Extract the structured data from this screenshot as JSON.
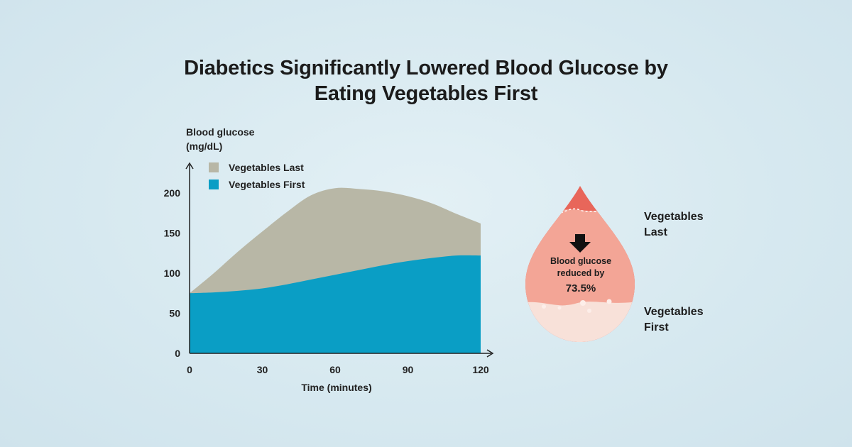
{
  "title_line1": "Diabetics Significantly Lowered Blood Glucose by",
  "title_line2": "Eating Vegetables First",
  "colors": {
    "vegetables_last": "#b8b7a6",
    "vegetables_first": "#0a9ec5",
    "drop_dark": "#e8665a",
    "drop_light": "#f3a596"
  },
  "chart_data": {
    "type": "area",
    "ylabel_line1": "Blood glucose",
    "ylabel_line2": "(mg/dL)",
    "xlabel": "Time (minutes)",
    "xlim": [
      0,
      120
    ],
    "ylim": [
      0,
      200
    ],
    "xticks": [
      0,
      30,
      60,
      90,
      120
    ],
    "yticks": [
      0,
      50,
      100,
      150,
      200
    ],
    "legend_position": "top-left",
    "series": [
      {
        "name": "Vegetables Last",
        "x": [
          0,
          10,
          20,
          30,
          40,
          50,
          60,
          70,
          80,
          90,
          100,
          110,
          120
        ],
        "y": [
          75,
          100,
          127,
          152,
          176,
          197,
          206,
          205,
          202,
          196,
          187,
          174,
          162
        ]
      },
      {
        "name": "Vegetables First",
        "x": [
          0,
          10,
          20,
          30,
          40,
          50,
          60,
          70,
          80,
          90,
          100,
          110,
          120
        ],
        "y": [
          75,
          76,
          78,
          81,
          86,
          92,
          98,
          104,
          110,
          115,
          119,
          122,
          122
        ]
      }
    ]
  },
  "drop": {
    "label_top_line1": "Vegetables",
    "label_top_line2": "Last",
    "label_bottom_line1": "Vegetables",
    "label_bottom_line2": "First",
    "text_line1": "Blood glucose",
    "text_line2": "reduced by",
    "value": "73.5%",
    "icon": "down-arrow-icon"
  }
}
